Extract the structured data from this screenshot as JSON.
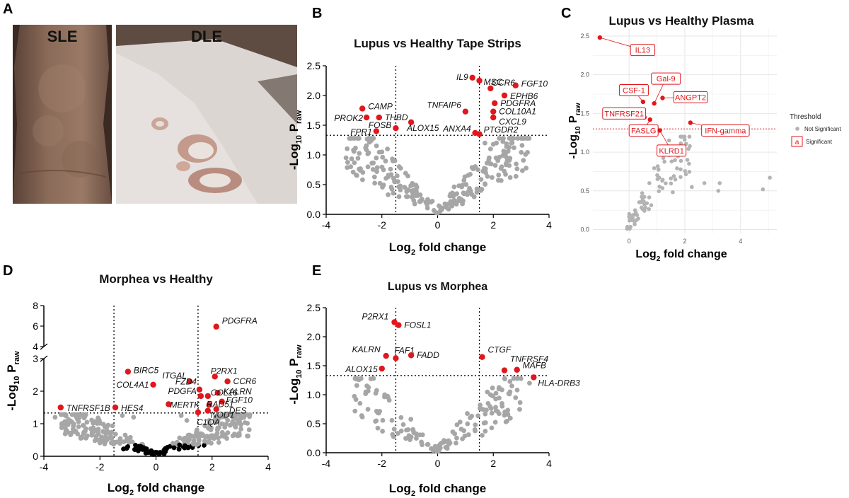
{
  "panel_letters": {
    "a": "A",
    "b": "B",
    "c": "C",
    "d": "D",
    "e": "E"
  },
  "photos": {
    "left_caption": "SLE",
    "right_caption": "DLE"
  },
  "chart_data": [
    {
      "id": "B",
      "type": "scatter",
      "title": "Lupus vs Healthy Tape Strips",
      "xlabel": "Log2 fold change",
      "ylabel": "-Log10 Praw",
      "xlim": [
        -4,
        4
      ],
      "ylim": [
        0,
        2.5
      ],
      "xticks": [
        -4,
        -2,
        0,
        2,
        4
      ],
      "yticks": [
        0.0,
        0.5,
        1.0,
        1.5,
        2.0,
        2.5
      ],
      "thresholds": {
        "x": [
          -1.5,
          1.5
        ],
        "y": 1.33
      },
      "significant": [
        {
          "label": "IL9",
          "x": 1.25,
          "y": 2.3
        },
        {
          "label": "MSC",
          "x": 1.5,
          "y": 2.25
        },
        {
          "label": "CCR6",
          "x": 1.9,
          "y": 2.12
        },
        {
          "label": "FGF10",
          "x": 2.8,
          "y": 2.17
        },
        {
          "label": "EPHB6",
          "x": 2.4,
          "y": 2.0
        },
        {
          "label": "PDGFRA",
          "x": 2.05,
          "y": 1.87
        },
        {
          "label": "COL10A1",
          "x": 2.0,
          "y": 1.73
        },
        {
          "label": "CXCL9",
          "x": 2.0,
          "y": 1.63
        },
        {
          "label": "TNFAIP6",
          "x": 1.0,
          "y": 1.73
        },
        {
          "label": "CAMP",
          "x": -2.7,
          "y": 1.78
        },
        {
          "label": "PROK2",
          "x": -2.55,
          "y": 1.63
        },
        {
          "label": "THBD",
          "x": -2.1,
          "y": 1.63
        },
        {
          "label": "FOSB",
          "x": -1.5,
          "y": 1.45
        },
        {
          "label": "ALOX15",
          "x": -0.95,
          "y": 1.55
        },
        {
          "label": "FPR1",
          "x": -2.2,
          "y": 1.4
        },
        {
          "label": "ANXA4",
          "x": 1.35,
          "y": 1.37
        },
        {
          "label": "PTGDR2",
          "x": 1.5,
          "y": 1.35
        }
      ],
      "nonsignificant_color": "#a6a6a6",
      "significant_color": "#e0171c"
    },
    {
      "id": "C",
      "type": "scatter",
      "title": "Lupus vs Healthy Plasma",
      "xlabel": "Log2 fold change",
      "ylabel": "-Log10 Praw",
      "xlim": [
        -1.3,
        5.3
      ],
      "ylim": [
        -0.05,
        2.6
      ],
      "xticks": [
        0,
        2,
        4
      ],
      "yticks": [
        0.0,
        0.5,
        1.0,
        1.5,
        2.0,
        2.5
      ],
      "threshold_y": 1.3,
      "significant": [
        {
          "label": "IL13",
          "x": -1.05,
          "y": 2.48
        },
        {
          "label": "Gal-9",
          "x": 0.9,
          "y": 1.63
        },
        {
          "label": "CSF-1",
          "x": 0.5,
          "y": 1.65
        },
        {
          "label": "ANGPT2",
          "x": 1.2,
          "y": 1.7
        },
        {
          "label": "TNFRSF21",
          "x": 0.55,
          "y": 1.45
        },
        {
          "label": "FASLG",
          "x": 0.75,
          "y": 1.42
        },
        {
          "label": "IFN-gamma",
          "x": 2.2,
          "y": 1.38
        },
        {
          "label": "KLRD1",
          "x": 1.1,
          "y": 1.28
        }
      ],
      "legend": {
        "title": "Threshold",
        "items": [
          "Not Significant",
          "Significant"
        ],
        "sig_marker": "a",
        "position": "right"
      },
      "nonsignificant_color": "#b3b3b3",
      "significant_color": "#e0171c"
    },
    {
      "id": "D",
      "type": "scatter",
      "title": "Morphea vs Healthy",
      "xlabel": "Log2 fold change",
      "ylabel": "-Log10 Praw",
      "xlim": [
        -4,
        4
      ],
      "ylim": [
        0,
        8
      ],
      "axis_break": [
        3,
        4
      ],
      "xticks": [
        -4,
        -2,
        0,
        2,
        4
      ],
      "yticks": [
        0,
        1,
        2,
        3,
        4,
        6,
        8
      ],
      "thresholds": {
        "x": [
          -1.5,
          1.5
        ],
        "y": 1.33
      },
      "significant": [
        {
          "label": "PDGFRA",
          "x": 2.15,
          "y": 5.95
        },
        {
          "label": "BIRC5",
          "x": -1.0,
          "y": 2.6
        },
        {
          "label": "COL4A1",
          "x": -0.1,
          "y": 2.2
        },
        {
          "label": "ITGAL",
          "x": 1.2,
          "y": 2.3
        },
        {
          "label": "P2RX1",
          "x": 2.1,
          "y": 2.45
        },
        {
          "label": "CCR6",
          "x": 2.55,
          "y": 2.3
        },
        {
          "label": "FZD4",
          "x": 1.55,
          "y": 2.05
        },
        {
          "label": "KALRN",
          "x": 2.2,
          "y": 1.95
        },
        {
          "label": "PDGFA",
          "x": 1.6,
          "y": 1.85
        },
        {
          "label": "COL16",
          "x": 1.85,
          "y": 1.85
        },
        {
          "label": "FGF10",
          "x": 2.35,
          "y": 1.68
        },
        {
          "label": "RAD51",
          "x": 1.9,
          "y": 1.58
        },
        {
          "label": "MERTK",
          "x": 0.45,
          "y": 1.6
        },
        {
          "label": "DES",
          "x": 2.15,
          "y": 1.45
        },
        {
          "label": "NOD1",
          "x": 1.85,
          "y": 1.4
        },
        {
          "label": "C1QA",
          "x": 1.5,
          "y": 1.35
        },
        {
          "label": "TNFRSF1B",
          "x": -3.4,
          "y": 1.5
        },
        {
          "label": "HES4",
          "x": -1.45,
          "y": 1.5
        }
      ],
      "nonsignificant_color": "#a6a6a6",
      "significant_color": "#e0171c",
      "low_color": "#000000"
    },
    {
      "id": "E",
      "type": "scatter",
      "title": "Lupus vs Morphea",
      "xlabel": "Log2 fold change",
      "ylabel": "-Log10 Praw",
      "xlim": [
        -4,
        4
      ],
      "ylim": [
        0,
        2.5
      ],
      "xticks": [
        -4,
        -2,
        0,
        2,
        4
      ],
      "yticks": [
        0.0,
        0.5,
        1.0,
        1.5,
        2.0,
        2.5
      ],
      "thresholds": {
        "x": [
          -1.5,
          1.5
        ],
        "y": 1.33
      },
      "significant": [
        {
          "label": "P2RX1",
          "x": -1.55,
          "y": 2.25
        },
        {
          "label": "FOSL1",
          "x": -1.4,
          "y": 2.2
        },
        {
          "label": "KALRN",
          "x": -1.85,
          "y": 1.67
        },
        {
          "label": "FAF1",
          "x": -1.5,
          "y": 1.63
        },
        {
          "label": "FADD",
          "x": -0.95,
          "y": 1.68
        },
        {
          "label": "ALOX15",
          "x": -2.0,
          "y": 1.45
        },
        {
          "label": "CTGF",
          "x": 1.6,
          "y": 1.65
        },
        {
          "label": "TNFRSF4",
          "x": 2.4,
          "y": 1.42
        },
        {
          "label": "MAFB",
          "x": 2.85,
          "y": 1.43
        },
        {
          "label": "HLA-DRB3",
          "x": 3.45,
          "y": 1.3
        }
      ],
      "nonsignificant_color": "#a6a6a6",
      "significant_color": "#e0171c"
    }
  ]
}
